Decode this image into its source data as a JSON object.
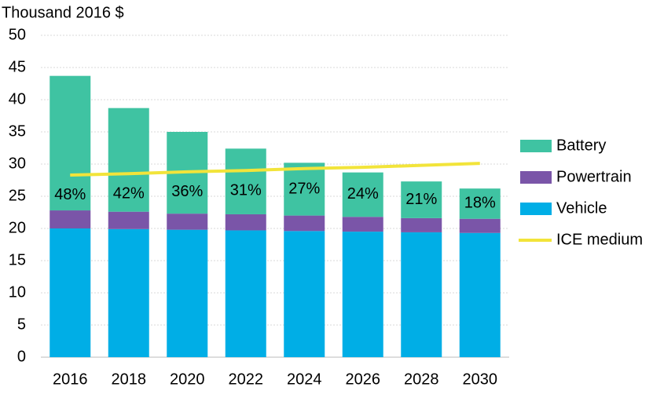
{
  "chart_data": {
    "type": "bar",
    "stacked": true,
    "y_label": "Thousand 2016 $",
    "categories": [
      "2016",
      "2018",
      "2020",
      "2022",
      "2024",
      "2026",
      "2028",
      "2030"
    ],
    "series": [
      {
        "name": "Vehicle",
        "color": "#00aee6",
        "values": [
          20.0,
          19.9,
          19.8,
          19.7,
          19.6,
          19.5,
          19.4,
          19.3
        ]
      },
      {
        "name": "Powertrain",
        "color": "#7a55a8",
        "values": [
          2.8,
          2.7,
          2.5,
          2.5,
          2.4,
          2.3,
          2.2,
          2.2
        ]
      },
      {
        "name": "Battery",
        "color": "#3fc3a2",
        "values": [
          20.9,
          16.1,
          12.7,
          10.2,
          8.2,
          6.9,
          5.7,
          4.7
        ],
        "annotations": [
          "48%",
          "42%",
          "36%",
          "31%",
          "27%",
          "24%",
          "21%",
          "18%"
        ]
      },
      {
        "name": "ICE medium",
        "color": "#f2e43a",
        "type": "line",
        "values": [
          28.3,
          28.5,
          28.8,
          29.0,
          29.3,
          29.5,
          29.8,
          30.1
        ]
      }
    ],
    "legend_order": [
      2,
      1,
      0,
      3
    ],
    "ylim": [
      0,
      50
    ],
    "yticks": [
      0,
      5,
      10,
      15,
      20,
      25,
      30,
      35,
      40,
      45,
      50
    ],
    "grid": true
  }
}
